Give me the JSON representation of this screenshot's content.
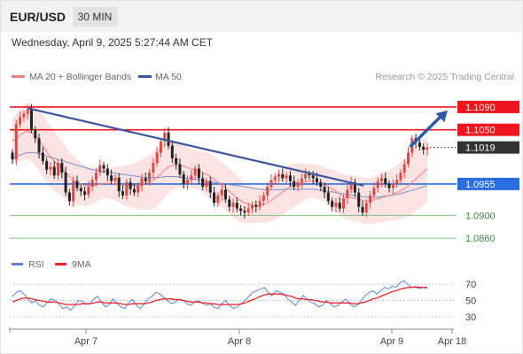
{
  "header": {
    "symbol": "EUR/USD",
    "timeframe": "30 MIN",
    "timestamp": "Wednesday, April 9, 2025 5:27:44 AM CET"
  },
  "legend": {
    "ma20": "MA 20 + Bollinger Bands",
    "ma50": "MA 50",
    "credit": "Research © 2025 Trading Central"
  },
  "rsi_legend": {
    "rsi": "RSI",
    "ma9": "9MA"
  },
  "colors": {
    "resistance": "#f0141e",
    "support": "#2a6de0",
    "minor_support": "#7cc47c",
    "trendline": "#3b559e",
    "ma20": "#f08080",
    "ma50": "#6b86c7",
    "band_fill": "#fbd9d9",
    "rsi": "#5b84d9",
    "rsi_ma": "#e8262b",
    "last_price": "#333333",
    "arrow": "#2e5aa8"
  },
  "chart_data": [
    {
      "type": "candlestick",
      "title": "EUR/USD",
      "timeframe": "30 MIN",
      "x_ticks": [
        "Apr 7",
        "Apr 8",
        "Apr 9",
        "Apr 18"
      ],
      "ylim": [
        1.084,
        1.111
      ],
      "levels": [
        {
          "value": 1.109,
          "label": "1.1090",
          "kind": "resistance"
        },
        {
          "value": 1.105,
          "label": "1.1050",
          "kind": "resistance"
        },
        {
          "value": 1.1019,
          "label": "1.1019",
          "kind": "last_price"
        },
        {
          "value": 1.0955,
          "label": "1.0955",
          "kind": "support"
        },
        {
          "value": 1.09,
          "label": "1.0900",
          "kind": "minor_support"
        },
        {
          "value": 1.086,
          "label": "1.0860",
          "kind": "minor_support"
        }
      ],
      "closes": [
        1.0998,
        1.106,
        1.1072,
        1.1078,
        1.1085,
        1.105,
        1.1035,
        1.101,
        1.0995,
        1.098,
        1.0985,
        1.097,
        1.0992,
        1.0975,
        1.094,
        1.0925,
        1.096,
        1.0948,
        1.0942,
        1.0936,
        1.095,
        1.0962,
        1.0975,
        1.0988,
        1.0982,
        1.097,
        1.096,
        1.0966,
        1.0942,
        1.0935,
        1.0958,
        1.0946,
        1.094,
        1.0952,
        1.0965,
        1.096,
        1.0975,
        1.0992,
        1.101,
        1.103,
        1.1045,
        1.1022,
        1.1,
        1.099,
        1.0972,
        1.0955,
        1.0962,
        1.097,
        1.0982,
        1.0965,
        1.095,
        1.096,
        1.094,
        1.0922,
        1.0935,
        1.0945,
        1.0928,
        1.0915,
        1.0922,
        1.0912,
        1.0908,
        1.0905,
        1.0912,
        1.0918,
        1.0915,
        1.0925,
        1.0935,
        1.095,
        1.0962,
        1.0968,
        1.0972,
        1.0965,
        1.097,
        1.096,
        1.095,
        1.0958,
        1.0965,
        1.0972,
        1.097,
        1.0965,
        1.0958,
        1.095,
        1.094,
        1.0925,
        1.0915,
        1.0922,
        1.0912,
        1.093,
        1.0945,
        1.0958,
        1.094,
        1.0915,
        1.0905,
        1.0922,
        1.0935,
        1.0948,
        1.096,
        1.0965,
        1.0955,
        1.0948,
        1.0955,
        1.0962,
        1.0975,
        1.099,
        1.101,
        1.1035,
        1.1028,
        1.102,
        1.1015,
        1.1019
      ],
      "ma20": [
        1.103,
        1.1035,
        1.104,
        1.1045,
        1.1048,
        1.1045,
        1.104,
        1.1032,
        1.1022,
        1.1012,
        1.1002,
        1.0995,
        1.0988,
        1.0982,
        1.0975,
        1.0968,
        1.0962,
        1.0958,
        1.0955,
        1.0952,
        1.0952,
        1.0952,
        1.0953,
        1.0955,
        1.0956,
        1.0956,
        1.0956,
        1.0955,
        1.0954,
        1.0953,
        1.0952,
        1.0952,
        1.0952,
        1.0953,
        1.0954,
        1.0956,
        1.0958,
        1.0962,
        1.0967,
        1.0973,
        1.098,
        1.0985,
        1.0988,
        1.0989,
        1.0988,
        1.0986,
        1.0984,
        1.0982,
        1.098,
        1.0978,
        1.0975,
        1.0972,
        1.0968,
        1.0963,
        1.0958,
        1.0953,
        1.0948,
        1.0942,
        1.0936,
        1.093,
        1.0926,
        1.0922,
        1.092,
        1.0918,
        1.0917,
        1.0917,
        1.0919,
        1.0922,
        1.0926,
        1.0931,
        1.0936,
        1.0941,
        1.0946,
        1.095,
        1.0953,
        1.0955,
        1.0957,
        1.0959,
        1.096,
        1.096,
        1.0959,
        1.0957,
        1.0954,
        1.095,
        1.0946,
        1.0942,
        1.0937,
        1.0934,
        1.0932,
        1.0931,
        1.093,
        1.0928,
        1.0926,
        1.0925,
        1.0925,
        1.0927,
        1.0929,
        1.0931,
        1.0933,
        1.0935,
        1.0937,
        1.094,
        1.0943,
        1.0947,
        1.0952,
        1.0958,
        1.0964,
        1.097,
        1.0976,
        1.0982
      ],
      "bollinger_width": [
        0.004,
        0.0042,
        0.0045,
        0.0048,
        0.005,
        0.005,
        0.0052,
        0.0054,
        0.0055,
        0.0055,
        0.0054,
        0.0052,
        0.005,
        0.0048,
        0.0046,
        0.0044,
        0.0042,
        0.004,
        0.0038,
        0.0036,
        0.0034,
        0.0032,
        0.003,
        0.0028,
        0.0026,
        0.0026,
        0.0028,
        0.003,
        0.0032,
        0.0034,
        0.0036,
        0.0038,
        0.004,
        0.0042,
        0.0044,
        0.0046,
        0.0048,
        0.005,
        0.005,
        0.0049,
        0.0048,
        0.0046,
        0.0044,
        0.0042,
        0.004,
        0.0038,
        0.0036,
        0.0034,
        0.0034,
        0.0035,
        0.0036,
        0.0038,
        0.004,
        0.004,
        0.004,
        0.004,
        0.004,
        0.004,
        0.004,
        0.0039,
        0.0038,
        0.0036,
        0.0034,
        0.0032,
        0.003,
        0.003,
        0.0032,
        0.0034,
        0.0036,
        0.0038,
        0.004,
        0.004,
        0.004,
        0.004,
        0.0038,
        0.0036,
        0.0034,
        0.0032,
        0.003,
        0.003,
        0.003,
        0.003,
        0.0031,
        0.0032,
        0.0034,
        0.0036,
        0.0037,
        0.0038,
        0.0039,
        0.004,
        0.004,
        0.004,
        0.004,
        0.004,
        0.004,
        0.0041,
        0.0042,
        0.0043,
        0.0044,
        0.0045,
        0.0046,
        0.0048,
        0.005,
        0.0052,
        0.0054,
        0.0056,
        0.0057,
        0.0058,
        0.0058,
        0.0058
      ],
      "ma50": [
        1.1,
        1.1003,
        1.1006,
        1.1008,
        1.101,
        1.101,
        1.101,
        1.1008,
        1.1006,
        1.1004,
        1.1002,
        1.1,
        1.0998,
        1.0996,
        1.0994,
        1.0992,
        1.099,
        1.0988,
        1.0986,
        1.0984,
        1.0982,
        1.098,
        1.0979,
        1.0978,
        1.0977,
        1.0976,
        1.0975,
        1.0974,
        1.0973,
        1.0972,
        1.0971,
        1.097,
        1.0969,
        1.0968,
        1.0967,
        1.0966,
        1.0966,
        1.0966,
        1.0966,
        1.0967,
        1.0968,
        1.0968,
        1.0968,
        1.0968,
        1.0967,
        1.0966,
        1.0965,
        1.0964,
        1.0963,
        1.0962,
        1.0961,
        1.096,
        1.0959,
        1.0958,
        1.0957,
        1.0956,
        1.0955,
        1.0954,
        1.0953,
        1.0952,
        1.0951,
        1.095,
        1.0949,
        1.0948,
        1.0947,
        1.0946,
        1.0945,
        1.0945,
        1.0945,
        1.0945,
        1.0945,
        1.0945,
        1.0946,
        1.0946,
        1.0946,
        1.0946,
        1.0946,
        1.0946,
        1.0946,
        1.0946,
        1.0945,
        1.0944,
        1.0943,
        1.0942,
        1.0941,
        1.094,
        1.0939,
        1.0938,
        1.0937,
        1.0936,
        1.0935,
        1.0934,
        1.0933,
        1.0932,
        1.0932,
        1.0932,
        1.0932,
        1.0933,
        1.0934,
        1.0935,
        1.0936,
        1.0937,
        1.0938,
        1.094,
        1.0942,
        1.0944,
        1.0946,
        1.0948,
        1.095,
        1.0952
      ],
      "trendline": [
        {
          "x": 0.04,
          "y": 1.1088
        },
        {
          "x": 0.8,
          "y": 1.0952
        }
      ],
      "forecast_arrow": [
        {
          "x": 0.905,
          "y": 1.102
        },
        {
          "x": 0.99,
          "y": 1.1084
        }
      ]
    },
    {
      "type": "line",
      "title": "RSI",
      "ylim": [
        20,
        80
      ],
      "y_ticks": [
        70,
        50,
        30
      ],
      "series": [
        {
          "name": "RSI",
          "values": [
            55,
            60,
            62,
            58,
            52,
            47,
            50,
            44,
            42,
            48,
            52,
            50,
            46,
            40,
            42,
            38,
            43,
            50,
            49,
            45,
            46,
            52,
            55,
            48,
            42,
            45,
            52,
            46,
            42,
            40,
            48,
            51,
            44,
            40,
            46,
            52,
            55,
            60,
            58,
            54,
            50,
            46,
            48,
            52,
            50,
            46,
            44,
            48,
            50,
            47,
            44,
            46,
            42,
            40,
            46,
            50,
            44,
            40,
            42,
            46,
            50,
            55,
            60,
            62,
            64,
            66,
            60,
            56,
            62,
            60,
            58,
            52,
            48,
            44,
            50,
            56,
            52,
            48,
            46,
            42,
            44,
            50,
            46,
            42,
            44,
            48,
            52,
            46,
            42,
            44,
            50,
            56,
            60,
            62,
            58,
            62,
            66,
            64,
            68,
            66,
            72,
            74,
            70,
            66,
            66,
            65,
            66,
            65
          ]
        },
        {
          "name": "9MA",
          "values": [
            48,
            50,
            52,
            53,
            53,
            52,
            51,
            50,
            49,
            48,
            48,
            48,
            47,
            46,
            45,
            45,
            45,
            45,
            46,
            46,
            46,
            47,
            48,
            48,
            47,
            47,
            47,
            47,
            46,
            45,
            45,
            46,
            46,
            46,
            46,
            47,
            48,
            50,
            51,
            52,
            52,
            52,
            51,
            51,
            50,
            49,
            48,
            48,
            48,
            47,
            47,
            46,
            46,
            45,
            45,
            45,
            45,
            45,
            45,
            46,
            47,
            49,
            51,
            53,
            55,
            57,
            58,
            58,
            58,
            58,
            57,
            56,
            55,
            53,
            52,
            52,
            51,
            51,
            50,
            49,
            48,
            48,
            47,
            47,
            47,
            47,
            47,
            47,
            46,
            46,
            47,
            48,
            50,
            52,
            53,
            55,
            57,
            59,
            61,
            62,
            64,
            65,
            66,
            66,
            67,
            66,
            66,
            66
          ]
        }
      ]
    }
  ]
}
